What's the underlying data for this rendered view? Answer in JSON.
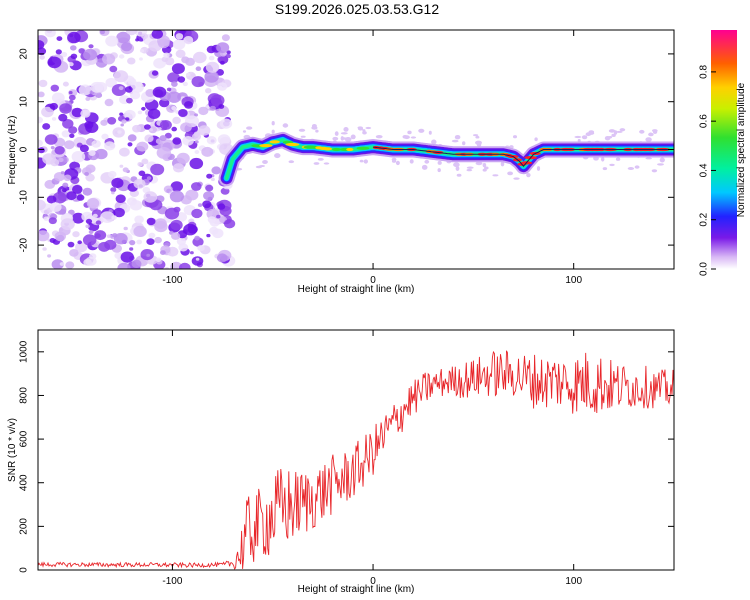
{
  "figure_title": "S199.2026.025.03.53.G12",
  "colors": {
    "snr_line": "#e8262a",
    "noise_purple": "#6a11e6",
    "axis": "#000000"
  },
  "chart_data": [
    {
      "type": "heatmap",
      "title": "S199.2026.025.03.53.G12",
      "xlabel": "Height of straight line (km)",
      "ylabel": "Frequency (Hz)",
      "xlim": [
        -167,
        150
      ],
      "ylim": [
        -25,
        25
      ],
      "xticks": [
        -100,
        0,
        100
      ],
      "yticks": [
        -20,
        -10,
        0,
        10,
        20
      ],
      "noise_region_x": [
        -167,
        -73
      ],
      "ridge": {
        "x": [
          -73,
          -70,
          -65,
          -60,
          -55,
          -50,
          -45,
          -40,
          -35,
          -30,
          -20,
          -10,
          0,
          10,
          20,
          30,
          40,
          50,
          60,
          65,
          70,
          73,
          75,
          78,
          80,
          85,
          90,
          100,
          110,
          120,
          130,
          140,
          150
        ],
        "freq": [
          -6,
          -2,
          0.5,
          1,
          0.5,
          1.5,
          2,
          1,
          0.5,
          0.5,
          0,
          0,
          0.5,
          0,
          0,
          -0.5,
          -1,
          -1,
          -1,
          -1,
          -1.5,
          -2.5,
          -3.5,
          -2,
          -1,
          0,
          0,
          0,
          0,
          0,
          0,
          0,
          0
        ]
      },
      "colorbar": {
        "label": "Normalized spectral amplitude",
        "ticks": [
          "0.0",
          "0.2",
          "0.4",
          "0.6",
          "0.8"
        ],
        "range": [
          0,
          0.97
        ]
      }
    },
    {
      "type": "line",
      "xlabel": "Height of straight line (km)",
      "ylabel": "SNR (10 * v/v)",
      "xlim": [
        -167,
        150
      ],
      "ylim": [
        0,
        1100
      ],
      "xticks": [
        -100,
        0,
        100
      ],
      "yticks": [
        0,
        200,
        400,
        600,
        800,
        1000
      ],
      "series": [
        {
          "name": "SNR",
          "x": [
            -167,
            -150,
            -130,
            -110,
            -90,
            -75,
            -70,
            -66,
            -62,
            -58,
            -54,
            -50,
            -46,
            -42,
            -38,
            -34,
            -30,
            -26,
            -22,
            -18,
            -14,
            -10,
            -6,
            -2,
            2,
            6,
            10,
            14,
            18,
            22,
            26,
            30,
            35,
            40,
            45,
            50,
            55,
            60,
            65,
            70,
            75,
            80,
            85,
            90,
            95,
            100,
            105,
            110,
            115,
            120,
            125,
            130,
            135,
            140,
            145,
            150
          ],
          "values": [
            25,
            25,
            24,
            24,
            22,
            24,
            30,
            80,
            180,
            200,
            220,
            250,
            280,
            290,
            300,
            310,
            330,
            350,
            380,
            400,
            420,
            450,
            480,
            520,
            570,
            620,
            670,
            720,
            770,
            800,
            830,
            850,
            860,
            870,
            870,
            880,
            890,
            900,
            900,
            900,
            880,
            870,
            860,
            870,
            860,
            850,
            860,
            860,
            850,
            840,
            840,
            840,
            840,
            830,
            830,
            830
          ],
          "noise_amp": [
            10,
            10,
            10,
            10,
            10,
            10,
            20,
            120,
            180,
            170,
            170,
            200,
            200,
            190,
            160,
            160,
            150,
            150,
            140,
            140,
            130,
            130,
            120,
            120,
            110,
            110,
            100,
            100,
            90,
            80,
            80,
            70,
            70,
            70,
            90,
            90,
            100,
            110,
            110,
            110,
            120,
            130,
            130,
            130,
            130,
            140,
            150,
            160,
            140,
            120,
            110,
            100,
            100,
            90,
            90,
            90
          ]
        }
      ]
    }
  ]
}
